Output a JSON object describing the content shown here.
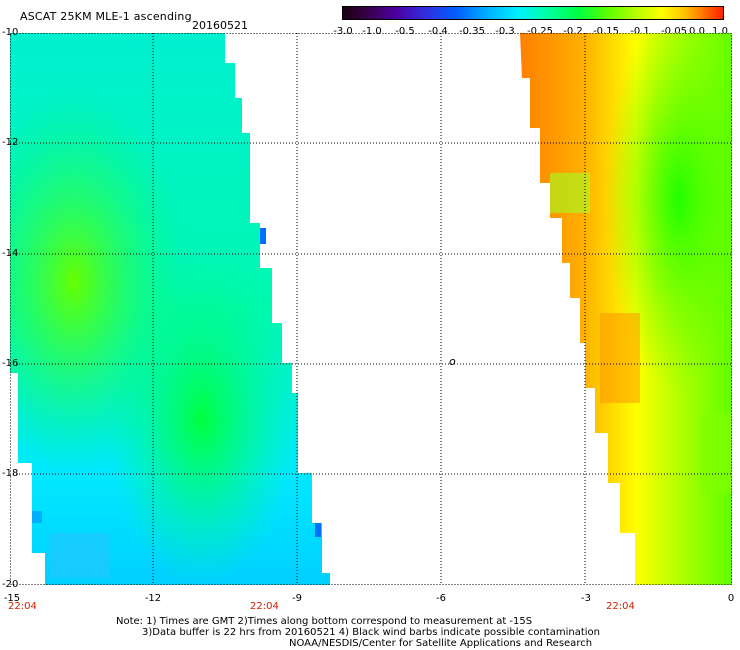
{
  "header": {
    "title": "ASCAT 25KM MLE-1 ascending",
    "date": "20160521"
  },
  "colorbar": {
    "labels": [
      "-3.0",
      "-1.0",
      "-0.5",
      "-0.4",
      "-0.35",
      "-0.3",
      "-0.25",
      "-0.2",
      "-0.15",
      "-0.1",
      "-0.05",
      "0.0",
      "1.0"
    ]
  },
  "axes": {
    "y_labels": [
      "-10",
      "-12",
      "-14",
      "-16",
      "-18",
      "-20"
    ],
    "x_labels": [
      "-15",
      "-12",
      "-9",
      "-6",
      "-3",
      "0"
    ]
  },
  "times": [
    "22:04",
    "22:04",
    "22:04"
  ],
  "marker": "o",
  "notes": {
    "line1": "Note: 1) Times are GMT 2)Times along bottom correspond to measurement at -15S",
    "line2": "3)Data buffer is 22 hrs from 20160521 4) Black wind barbs indicate possible contamination",
    "line3": "NOAA/NESDIS/Center for Satellite Applications and Research"
  },
  "colors": {
    "left_swath_base": "#00f0e8",
    "right_swath_base": "#ffd000",
    "time_label": "#cc2200"
  }
}
